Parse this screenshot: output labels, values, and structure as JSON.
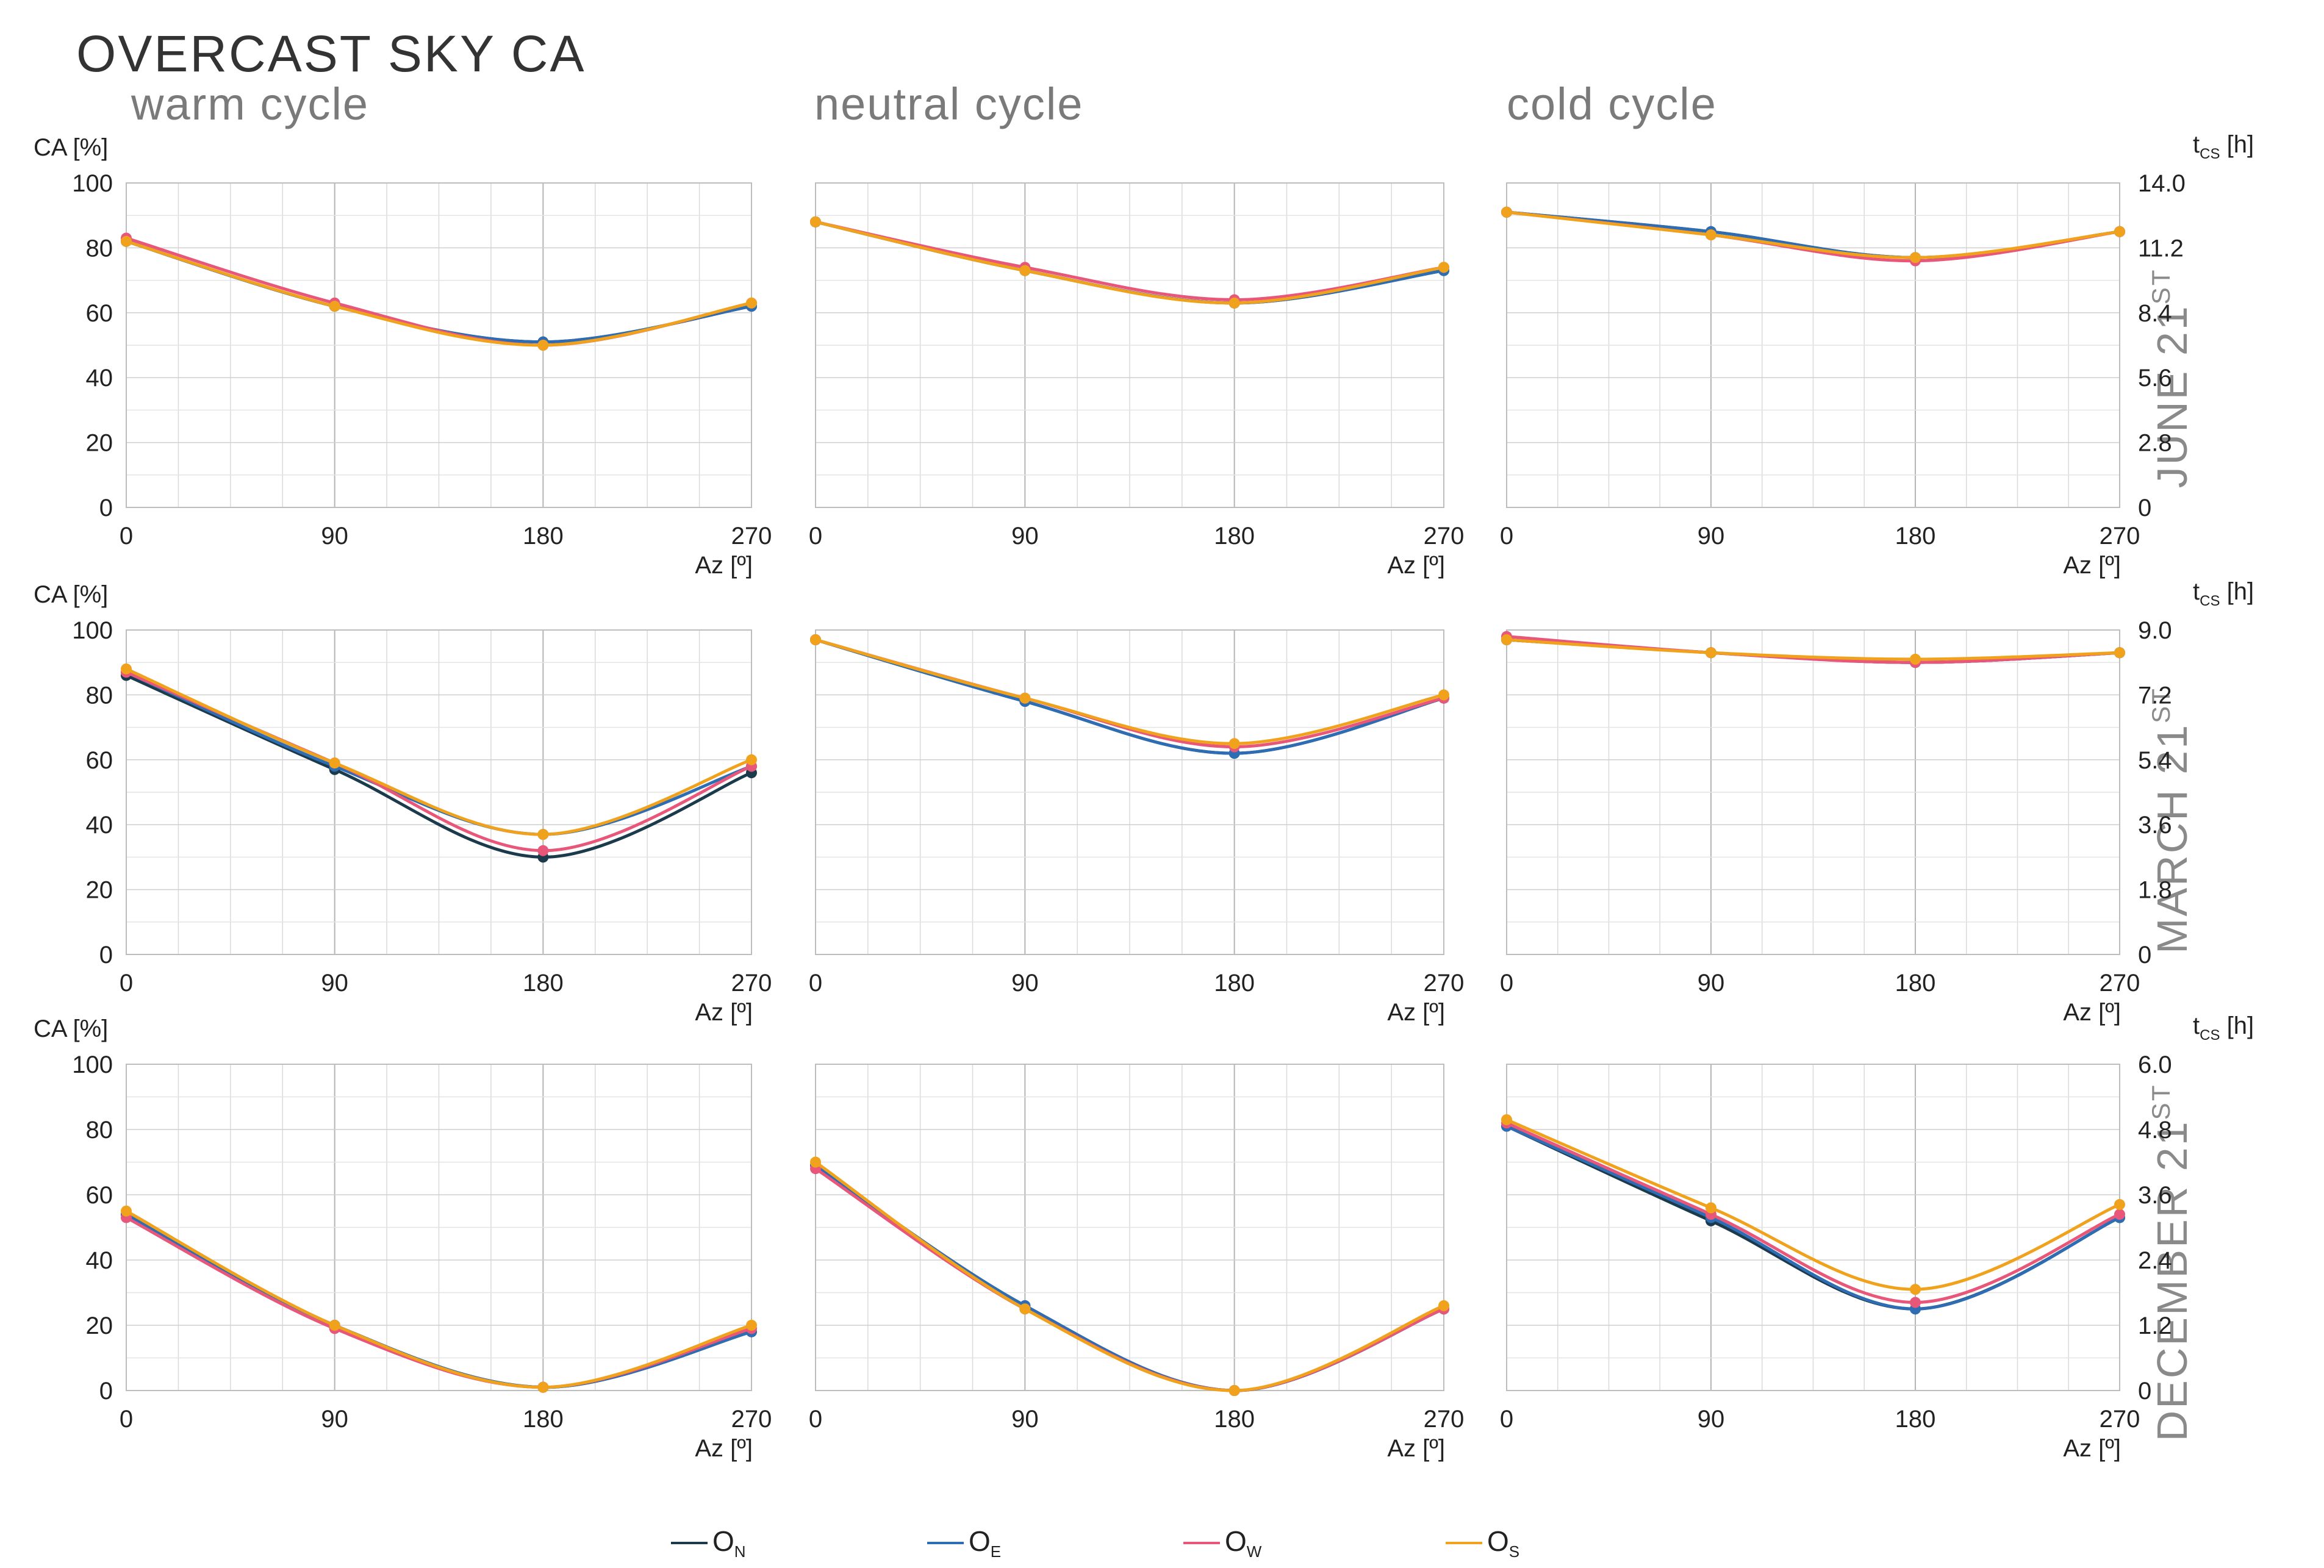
{
  "title": "OVERCAST SKY CA",
  "columns": [
    "warm cycle",
    "neutral cycle",
    "cold cycle"
  ],
  "rows": [
    {
      "label": "JUNE 21",
      "suffix": "ST"
    },
    {
      "label": "MARCH 21",
      "suffix": "ST"
    },
    {
      "label": "DECEMBER 21",
      "suffix": "ST"
    }
  ],
  "axes": {
    "y_left_label": "CA [%]",
    "y_right_label_main": "t",
    "y_right_label_sub": "CS",
    "y_right_label_unit": "[h]",
    "x_label": "Az [º]",
    "x_ticks": [
      "0",
      "90",
      "180",
      "270"
    ],
    "y_left_ticks": [
      "0",
      "20",
      "40",
      "60",
      "80",
      "100"
    ],
    "y_right_ticks": [
      [
        "0",
        "2.8",
        "5.6",
        "8.4",
        "11.2",
        "14.0"
      ],
      [
        "0",
        "1.8",
        "3.6",
        "5.4",
        "7.2",
        "9.0"
      ],
      [
        "0",
        "1.2",
        "2.4",
        "3.6",
        "4.8",
        "6.0"
      ]
    ]
  },
  "series_styles": [
    {
      "name": "O",
      "sub": "N",
      "color": "#1b3a4b"
    },
    {
      "name": "O",
      "sub": "E",
      "color": "#2e6db4"
    },
    {
      "name": "O",
      "sub": "W",
      "color": "#e8567a"
    },
    {
      "name": "O",
      "sub": "S",
      "color": "#f0a21c"
    }
  ],
  "chart_data": [
    {
      "type": "line",
      "row": "JUNE 21ST",
      "cycle": "warm cycle",
      "x": [
        0,
        90,
        180,
        270
      ],
      "xlim": [
        0,
        270
      ],
      "ylim": [
        0,
        100
      ],
      "series": [
        {
          "name": "ON",
          "values": [
            82,
            62,
            51,
            62
          ]
        },
        {
          "name": "OE",
          "values": [
            82,
            62,
            51,
            62
          ]
        },
        {
          "name": "OW",
          "values": [
            83,
            63,
            50,
            63
          ]
        },
        {
          "name": "OS",
          "values": [
            82,
            62,
            50,
            63
          ]
        }
      ]
    },
    {
      "type": "line",
      "row": "JUNE 21ST",
      "cycle": "neutral cycle",
      "x": [
        0,
        90,
        180,
        270
      ],
      "xlim": [
        0,
        270
      ],
      "ylim": [
        0,
        100
      ],
      "series": [
        {
          "name": "ON",
          "values": [
            88,
            73,
            63,
            73
          ]
        },
        {
          "name": "OE",
          "values": [
            88,
            73,
            63,
            73
          ]
        },
        {
          "name": "OW",
          "values": [
            88,
            74,
            64,
            74
          ]
        },
        {
          "name": "OS",
          "values": [
            88,
            73,
            63,
            74
          ]
        }
      ]
    },
    {
      "type": "line",
      "row": "JUNE 21ST",
      "cycle": "cold cycle",
      "x": [
        0,
        90,
        180,
        270
      ],
      "xlim": [
        0,
        270
      ],
      "ylim": [
        0,
        100
      ],
      "series": [
        {
          "name": "ON",
          "values": [
            91,
            85,
            77,
            85
          ]
        },
        {
          "name": "OE",
          "values": [
            91,
            85,
            77,
            85
          ]
        },
        {
          "name": "OW",
          "values": [
            91,
            84,
            76,
            85
          ]
        },
        {
          "name": "OS",
          "values": [
            91,
            84,
            77,
            85
          ]
        }
      ]
    },
    {
      "type": "line",
      "row": "MARCH 21ST",
      "cycle": "warm cycle",
      "x": [
        0,
        90,
        180,
        270
      ],
      "xlim": [
        0,
        270
      ],
      "ylim": [
        0,
        100
      ],
      "series": [
        {
          "name": "ON",
          "values": [
            86,
            57,
            30,
            56
          ]
        },
        {
          "name": "OE",
          "values": [
            87,
            58,
            37,
            58
          ]
        },
        {
          "name": "OW",
          "values": [
            87,
            59,
            32,
            58
          ]
        },
        {
          "name": "OS",
          "values": [
            88,
            59,
            37,
            60
          ]
        }
      ]
    },
    {
      "type": "line",
      "row": "MARCH 21ST",
      "cycle": "neutral cycle",
      "x": [
        0,
        90,
        180,
        270
      ],
      "xlim": [
        0,
        270
      ],
      "ylim": [
        0,
        100
      ],
      "series": [
        {
          "name": "ON",
          "values": [
            97,
            78,
            62,
            79
          ]
        },
        {
          "name": "OE",
          "values": [
            97,
            78,
            62,
            79
          ]
        },
        {
          "name": "OW",
          "values": [
            97,
            79,
            64,
            79
          ]
        },
        {
          "name": "OS",
          "values": [
            97,
            79,
            65,
            80
          ]
        }
      ]
    },
    {
      "type": "line",
      "row": "MARCH 21ST",
      "cycle": "cold cycle",
      "x": [
        0,
        90,
        180,
        270
      ],
      "xlim": [
        0,
        270
      ],
      "ylim": [
        0,
        100
      ],
      "series": [
        {
          "name": "ON",
          "values": [
            97,
            93,
            90,
            93
          ]
        },
        {
          "name": "OE",
          "values": [
            97,
            93,
            90,
            93
          ]
        },
        {
          "name": "OW",
          "values": [
            98,
            93,
            90,
            93
          ]
        },
        {
          "name": "OS",
          "values": [
            97,
            93,
            91,
            93
          ]
        }
      ]
    },
    {
      "type": "line",
      "row": "DECEMBER 21ST",
      "cycle": "warm cycle",
      "x": [
        0,
        90,
        180,
        270
      ],
      "xlim": [
        0,
        270
      ],
      "ylim": [
        0,
        100
      ],
      "series": [
        {
          "name": "ON",
          "values": [
            54,
            20,
            1,
            18
          ]
        },
        {
          "name": "OE",
          "values": [
            54,
            20,
            1,
            18
          ]
        },
        {
          "name": "OW",
          "values": [
            53,
            19,
            1,
            19
          ]
        },
        {
          "name": "OS",
          "values": [
            55,
            20,
            1,
            20
          ]
        }
      ]
    },
    {
      "type": "line",
      "row": "DECEMBER 21ST",
      "cycle": "neutral cycle",
      "x": [
        0,
        90,
        180,
        270
      ],
      "xlim": [
        0,
        270
      ],
      "ylim": [
        0,
        100
      ],
      "series": [
        {
          "name": "ON",
          "values": [
            69,
            26,
            0,
            25
          ]
        },
        {
          "name": "OE",
          "values": [
            69,
            26,
            0,
            25
          ]
        },
        {
          "name": "OW",
          "values": [
            68,
            25,
            0,
            25
          ]
        },
        {
          "name": "OS",
          "values": [
            70,
            25,
            0,
            26
          ]
        }
      ]
    },
    {
      "type": "line",
      "row": "DECEMBER 21ST",
      "cycle": "cold cycle",
      "x": [
        0,
        90,
        180,
        270
      ],
      "xlim": [
        0,
        270
      ],
      "ylim": [
        0,
        100
      ],
      "series": [
        {
          "name": "ON",
          "values": [
            81,
            52,
            25,
            53
          ]
        },
        {
          "name": "OE",
          "values": [
            81,
            53,
            25,
            53
          ]
        },
        {
          "name": "OW",
          "values": [
            82,
            54,
            27,
            54
          ]
        },
        {
          "name": "OS",
          "values": [
            83,
            56,
            31,
            57
          ]
        }
      ]
    }
  ]
}
